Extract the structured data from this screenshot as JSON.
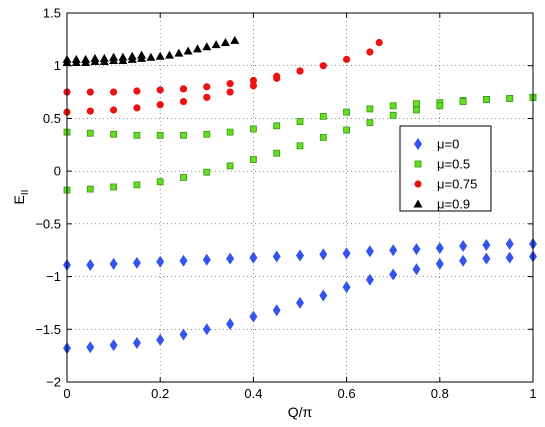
{
  "chart_data": {
    "type": "scatter",
    "title": "",
    "xlabel": "Q/π",
    "ylabel_main": "E",
    "ylabel_sub": "II",
    "xlim": [
      0,
      1
    ],
    "ylim": [
      -2,
      1.5
    ],
    "xticks": [
      "0",
      "0.2",
      "0.4",
      "0.6",
      "0.8",
      "1"
    ],
    "yticks": [
      "−2",
      "−1.5",
      "−1",
      "−0.5",
      "0",
      "0.5",
      "1",
      "1.5"
    ],
    "grid": true,
    "legend_position": "center-right",
    "series": [
      {
        "name": "μ=0",
        "marker": "diamond",
        "color": "#3355ee",
        "points": [
          [
            0.0,
            -0.89
          ],
          [
            0.05,
            -0.89
          ],
          [
            0.1,
            -0.88
          ],
          [
            0.15,
            -0.87
          ],
          [
            0.2,
            -0.86
          ],
          [
            0.25,
            -0.85
          ],
          [
            0.3,
            -0.84
          ],
          [
            0.35,
            -0.83
          ],
          [
            0.4,
            -0.82
          ],
          [
            0.45,
            -0.81
          ],
          [
            0.5,
            -0.8
          ],
          [
            0.55,
            -0.79
          ],
          [
            0.6,
            -0.78
          ],
          [
            0.65,
            -0.76
          ],
          [
            0.7,
            -0.75
          ],
          [
            0.75,
            -0.74
          ],
          [
            0.8,
            -0.73
          ],
          [
            0.85,
            -0.71
          ],
          [
            0.9,
            -0.7
          ],
          [
            0.95,
            -0.69
          ],
          [
            1.0,
            -0.69
          ],
          [
            0.0,
            -1.68
          ],
          [
            0.05,
            -1.67
          ],
          [
            0.1,
            -1.65
          ],
          [
            0.15,
            -1.63
          ],
          [
            0.2,
            -1.6
          ],
          [
            0.25,
            -1.55
          ],
          [
            0.3,
            -1.5
          ],
          [
            0.35,
            -1.45
          ],
          [
            0.4,
            -1.38
          ],
          [
            0.45,
            -1.32
          ],
          [
            0.5,
            -1.25
          ],
          [
            0.55,
            -1.18
          ],
          [
            0.6,
            -1.1
          ],
          [
            0.65,
            -1.03
          ],
          [
            0.7,
            -0.98
          ],
          [
            0.75,
            -0.93
          ],
          [
            0.8,
            -0.88
          ],
          [
            0.85,
            -0.85
          ],
          [
            0.9,
            -0.83
          ],
          [
            0.95,
            -0.82
          ],
          [
            1.0,
            -0.81
          ]
        ]
      },
      {
        "name": "μ=0.5",
        "marker": "square",
        "color": "#66dd22",
        "points": [
          [
            0.0,
            0.37
          ],
          [
            0.05,
            0.36
          ],
          [
            0.1,
            0.35
          ],
          [
            0.15,
            0.34
          ],
          [
            0.2,
            0.34
          ],
          [
            0.25,
            0.34
          ],
          [
            0.3,
            0.35
          ],
          [
            0.35,
            0.37
          ],
          [
            0.4,
            0.4
          ],
          [
            0.45,
            0.43
          ],
          [
            0.5,
            0.47
          ],
          [
            0.55,
            0.52
          ],
          [
            0.6,
            0.56
          ],
          [
            0.65,
            0.59
          ],
          [
            0.7,
            0.62
          ],
          [
            0.75,
            0.64
          ],
          [
            0.8,
            0.65
          ],
          [
            0.85,
            0.67
          ],
          [
            0.9,
            0.68
          ],
          [
            0.95,
            0.69
          ],
          [
            1.0,
            0.7
          ],
          [
            0.0,
            -0.18
          ],
          [
            0.05,
            -0.17
          ],
          [
            0.1,
            -0.15
          ],
          [
            0.15,
            -0.13
          ],
          [
            0.2,
            -0.1
          ],
          [
            0.25,
            -0.06
          ],
          [
            0.3,
            -0.01
          ],
          [
            0.35,
            0.05
          ],
          [
            0.4,
            0.11
          ],
          [
            0.45,
            0.17
          ],
          [
            0.5,
            0.24
          ],
          [
            0.55,
            0.32
          ],
          [
            0.6,
            0.39
          ],
          [
            0.65,
            0.46
          ],
          [
            0.7,
            0.53
          ],
          [
            0.75,
            0.58
          ],
          [
            0.8,
            0.62
          ],
          [
            0.85,
            0.66
          ],
          [
            0.9,
            0.68
          ],
          [
            0.95,
            0.69
          ],
          [
            1.0,
            0.7
          ]
        ]
      },
      {
        "name": "μ=0.75",
        "marker": "circle",
        "color": "#ee1111",
        "points": [
          [
            0.0,
            0.75
          ],
          [
            0.05,
            0.75
          ],
          [
            0.1,
            0.75
          ],
          [
            0.15,
            0.76
          ],
          [
            0.2,
            0.77
          ],
          [
            0.25,
            0.78
          ],
          [
            0.3,
            0.8
          ],
          [
            0.35,
            0.83
          ],
          [
            0.4,
            0.86
          ],
          [
            0.45,
            0.9
          ],
          [
            0.5,
            0.95
          ],
          [
            0.0,
            0.56
          ],
          [
            0.05,
            0.57
          ],
          [
            0.1,
            0.58
          ],
          [
            0.15,
            0.6
          ],
          [
            0.2,
            0.63
          ],
          [
            0.25,
            0.66
          ],
          [
            0.3,
            0.7
          ],
          [
            0.35,
            0.75
          ],
          [
            0.4,
            0.81
          ],
          [
            0.45,
            0.88
          ],
          [
            0.5,
            0.95
          ],
          [
            0.55,
            1.0
          ],
          [
            0.6,
            1.06
          ],
          [
            0.65,
            1.13
          ],
          [
            0.67,
            1.22
          ]
        ]
      },
      {
        "name": "μ=0.9",
        "marker": "triangle",
        "color": "#000000",
        "points": [
          [
            0.0,
            1.03
          ],
          [
            0.02,
            1.03
          ],
          [
            0.04,
            1.03
          ],
          [
            0.06,
            1.04
          ],
          [
            0.08,
            1.04
          ],
          [
            0.1,
            1.05
          ],
          [
            0.12,
            1.05
          ],
          [
            0.14,
            1.06
          ],
          [
            0.16,
            1.07
          ],
          [
            0.18,
            1.08
          ],
          [
            0.2,
            1.09
          ],
          [
            0.22,
            1.1
          ],
          [
            0.24,
            1.12
          ],
          [
            0.26,
            1.14
          ],
          [
            0.28,
            1.16
          ],
          [
            0.3,
            1.18
          ],
          [
            0.32,
            1.2
          ],
          [
            0.34,
            1.22
          ],
          [
            0.36,
            1.24
          ],
          [
            0.0,
            1.06
          ],
          [
            0.02,
            1.06
          ],
          [
            0.04,
            1.06
          ],
          [
            0.06,
            1.07
          ],
          [
            0.08,
            1.07
          ],
          [
            0.1,
            1.08
          ],
          [
            0.12,
            1.08
          ],
          [
            0.14,
            1.09
          ],
          [
            0.16,
            1.1
          ]
        ]
      }
    ]
  }
}
